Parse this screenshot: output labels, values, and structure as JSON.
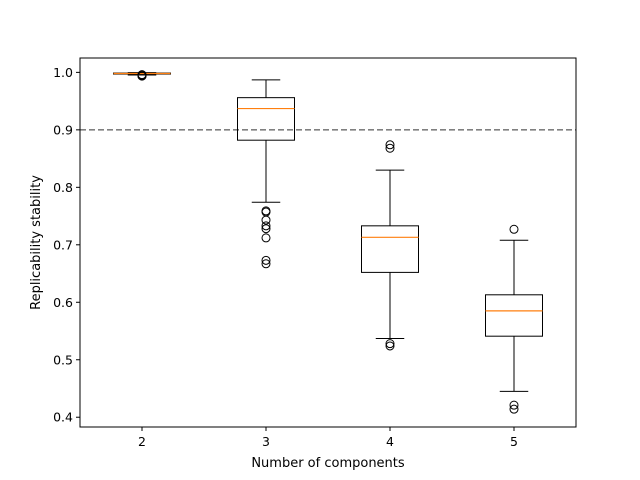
{
  "chart_data": {
    "type": "box",
    "xlabel": "Number of components",
    "ylabel": "Replicability stability",
    "ylim": [
      0.383,
      1.025
    ],
    "yticks": [
      0.4,
      0.5,
      0.6,
      0.7,
      0.8,
      0.9,
      1.0
    ],
    "ytick_labels": [
      "0.4",
      "0.5",
      "0.6",
      "0.7",
      "0.8",
      "0.9",
      "1.0"
    ],
    "categories": [
      "2",
      "3",
      "4",
      "5"
    ],
    "reference_line": {
      "y": 0.9,
      "style": "dashed",
      "color": "#808080"
    },
    "colors": {
      "box": "#000000",
      "median": "#ff7f0e",
      "flier": "#000000"
    },
    "boxes": [
      {
        "category": "2",
        "whisker_low": 0.9955,
        "q1": 0.9972,
        "median": 0.998,
        "q3": 0.9988,
        "whisker_high": 0.9995,
        "fliers": [
          0.9935,
          0.994,
          0.9945,
          0.996
        ]
      },
      {
        "category": "3",
        "whisker_low": 0.774,
        "q1": 0.882,
        "median": 0.937,
        "q3": 0.956,
        "whisker_high": 0.987,
        "fliers": [
          0.759,
          0.757,
          0.743,
          0.733,
          0.728,
          0.712,
          0.673,
          0.667
        ]
      },
      {
        "category": "4",
        "whisker_low": 0.537,
        "q1": 0.652,
        "median": 0.713,
        "q3": 0.733,
        "whisker_high": 0.83,
        "fliers": [
          0.874,
          0.868,
          0.528,
          0.524
        ]
      },
      {
        "category": "5",
        "whisker_low": 0.445,
        "q1": 0.541,
        "median": 0.585,
        "q3": 0.613,
        "whisker_high": 0.708,
        "fliers": [
          0.727,
          0.421,
          0.414
        ]
      }
    ]
  }
}
